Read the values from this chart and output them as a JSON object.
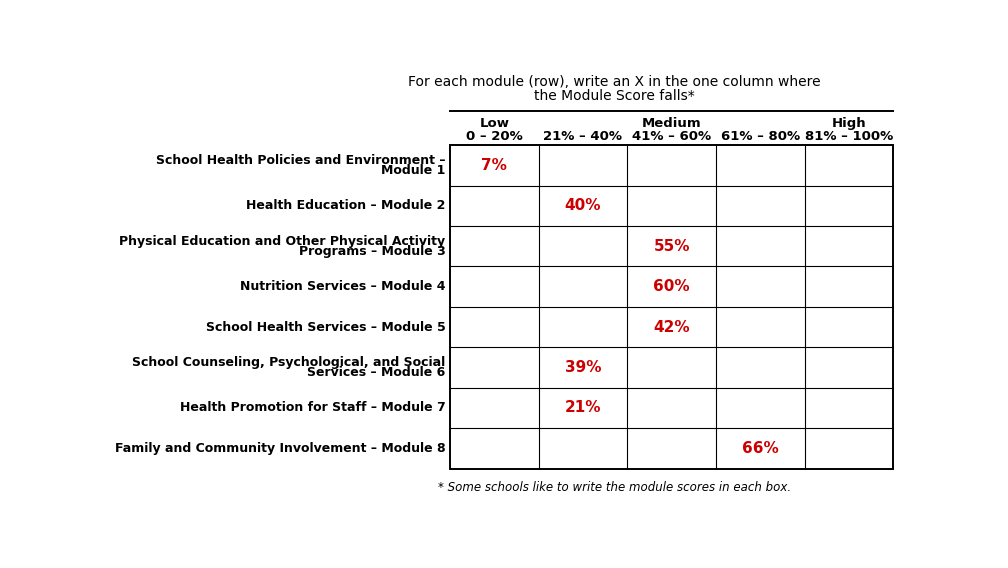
{
  "title_line1": "For each module (row), write an X in the one column where",
  "title_line2": "the Module Score falls*",
  "footnote": "* Some schools like to write the module scores in each box.",
  "col_top_labels": [
    "Low",
    "",
    "Medium",
    "",
    "High"
  ],
  "col_bot_labels": [
    "0 – 20%",
    "21% – 40%",
    "41% – 60%",
    "61% – 80%",
    "81% – 100%"
  ],
  "rows": [
    {
      "label_lines": [
        "School Health Policies and Environment –",
        "Module 1"
      ],
      "score": "7%",
      "col_index": 0
    },
    {
      "label_lines": [
        "Health Education – Module 2"
      ],
      "score": "40%",
      "col_index": 1
    },
    {
      "label_lines": [
        "Physical Education and Other Physical Activity",
        "Programs – Module 3"
      ],
      "score": "55%",
      "col_index": 2
    },
    {
      "label_lines": [
        "Nutrition Services – Module 4"
      ],
      "score": "60%",
      "col_index": 2
    },
    {
      "label_lines": [
        "School Health Services – Module 5"
      ],
      "score": "42%",
      "col_index": 2
    },
    {
      "label_lines": [
        "School Counseling, Psychological, and Social",
        "Services – Module 6"
      ],
      "score": "39%",
      "col_index": 1
    },
    {
      "label_lines": [
        "Health Promotion for Staff – Module 7"
      ],
      "score": "21%",
      "col_index": 1
    },
    {
      "label_lines": [
        "Family and Community Involvement – Module 8"
      ],
      "score": "66%",
      "col_index": 3
    }
  ],
  "score_color": "#cc0000",
  "bg_color": "#ffffff",
  "grid_color": "#000000",
  "label_font_size": 9.0,
  "score_font_size": 11,
  "header_font_size": 9.5,
  "title_font_size": 10,
  "footnote_font_size": 8.5
}
